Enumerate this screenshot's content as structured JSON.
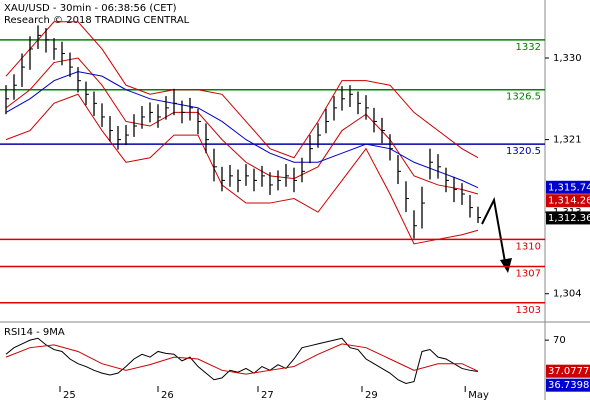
{
  "chart_data": {
    "type": "ohlc",
    "title": "XAU/USD - 30min - 06:38:56 (CET)",
    "subtitle": "Research © 2018 TRADING CENTRAL",
    "xlim": [
      -0.75,
      67.375
    ],
    "xticks": [
      {
        "value": 6.75,
        "label": "25"
      },
      {
        "value": 19,
        "label": "26"
      },
      {
        "value": 31.5,
        "label": "27"
      },
      {
        "value": 44.5,
        "label": "29"
      },
      {
        "value": 57.4,
        "label": "May"
      }
    ],
    "ylim": [
      1301.1,
      1336.4
    ],
    "yticks": [
      {
        "value": 1304,
        "label": "1,304"
      },
      {
        "value": 1313,
        "label": "1,313"
      },
      {
        "value": 1321,
        "label": "1,321"
      },
      {
        "value": 1330,
        "label": "1,330"
      }
    ],
    "color": "#000000",
    "high": [
      1327,
      1328.2,
      1330.5,
      1332.4,
      1333.6,
      1333.3,
      1332.2,
      1331.8,
      1330.6,
      1329,
      1327.4,
      1326.3,
      1325,
      1323.6,
      1322.5,
      1322.6,
      1323.8,
      1324.7,
      1325.1,
      1324.9,
      1325.8,
      1326.6,
      1325.3,
      1325.6,
      1324.4,
      1322.8,
      1320,
      1318,
      1318.2,
      1317.7,
      1318.3,
      1317.8,
      1318.1,
      1317.4,
      1317.6,
      1318.3,
      1317.9,
      1319,
      1321.5,
      1322.8,
      1324.4,
      1325.8,
      1326.9,
      1327,
      1326.3,
      1325.9,
      1324.5,
      1323.4,
      1321.6,
      1319.3,
      1316.4,
      1313.2,
      1315.8,
      1320,
      1319.4,
      1317.9,
      1316.9,
      1316.2,
      1314.9,
      1313.6
    ],
    "low": [
      1323.8,
      1325.4,
      1326.8,
      1328.7,
      1331,
      1330.6,
      1329.8,
      1329.2,
      1327.9,
      1326.2,
      1324.8,
      1323.6,
      1322.4,
      1320.8,
      1319.9,
      1320.4,
      1321.3,
      1322.2,
      1322.9,
      1322.3,
      1323.2,
      1323.7,
      1322.8,
      1323.1,
      1321.6,
      1319.5,
      1316.4,
      1315.3,
      1315.8,
      1315.2,
      1315.9,
      1315.3,
      1315.8,
      1314.9,
      1315.4,
      1315.8,
      1315.2,
      1316.3,
      1318.4,
      1320.1,
      1321.7,
      1323.1,
      1324.2,
      1324.6,
      1323.8,
      1323.2,
      1321.8,
      1320.6,
      1318.7,
      1316.1,
      1313,
      1310.1,
      1311.2,
      1316.6,
      1316.7,
      1315.2,
      1314.1,
      1313.8,
      1312.4,
      1311.8
    ],
    "close": [
      1325.5,
      1327,
      1329,
      1331,
      1332.5,
      1332,
      1331,
      1330.5,
      1329,
      1327.5,
      1326,
      1325,
      1323.5,
      1322,
      1321,
      1321.5,
      1322.5,
      1323.5,
      1324,
      1323.5,
      1324.5,
      1325,
      1324,
      1324.5,
      1323,
      1321,
      1318,
      1316.5,
      1317,
      1316.5,
      1317,
      1316.5,
      1317,
      1316,
      1316.5,
      1317,
      1316.5,
      1317.5,
      1320,
      1321.5,
      1323,
      1324.5,
      1325.5,
      1326,
      1325,
      1324.5,
      1323,
      1322,
      1320,
      1317.5,
      1314.5,
      1311.5,
      1314,
      1318.5,
      1318,
      1316.5,
      1315.5,
      1315,
      1313.5,
      1312.4
    ],
    "overlay_x": [
      0,
      3,
      6,
      9,
      12,
      15,
      18,
      21,
      24,
      27,
      30,
      33,
      36,
      39,
      42,
      45,
      48,
      51,
      54,
      57,
      59
    ],
    "overlays": [
      {
        "color": "#cc0000",
        "values": [
          1328,
          1331,
          1334,
          1334,
          1331,
          1327,
          1326,
          1326.5,
          1326.5,
          1326,
          1323,
          1320,
          1319,
          1323,
          1327.5,
          1327.5,
          1327,
          1324,
          1322,
          1320,
          1319
        ]
      },
      {
        "color": "#cc0000",
        "values": [
          1324.5,
          1326.5,
          1329.5,
          1330,
          1327,
          1323,
          1322.5,
          1324,
          1324,
          1321,
          1318.5,
          1317,
          1316.7,
          1318,
          1322,
          1323.8,
          1321,
          1317,
          1316,
          1315.5,
          1315
        ]
      },
      {
        "color": "#cc0000",
        "values": [
          1321,
          1322,
          1325,
          1326,
          1322,
          1318.5,
          1319,
          1321.5,
          1321.5,
          1316,
          1314,
          1314,
          1314.5,
          1313,
          1316.5,
          1320,
          1315,
          1309.5,
          1310,
          1310.5,
          1311
        ]
      },
      {
        "color": "#0000cc",
        "values": [
          1324,
          1325.5,
          1327.5,
          1328.5,
          1328,
          1326.5,
          1325.5,
          1325,
          1324.5,
          1323,
          1321,
          1319.5,
          1318.5,
          1318.5,
          1319.5,
          1320.5,
          1320,
          1318.5,
          1317.5,
          1316.5,
          1315.7
        ]
      }
    ],
    "levels": [
      {
        "value": 1332,
        "color": "#008000"
      },
      {
        "value": 1326.5,
        "color": "#008000"
      },
      {
        "value": 1320.5,
        "color": "#0000aa"
      },
      {
        "value": 1310,
        "color": "#dd0000"
      },
      {
        "value": 1307,
        "color": "#dd0000"
      },
      {
        "value": 1303,
        "color": "#dd0000"
      }
    ],
    "price_tags": [
      {
        "value": 1315.74,
        "label": "1,315.74",
        "color": "#0000cc"
      },
      {
        "value": 1314.26,
        "label": "1,314.26",
        "color": "#cc0000"
      },
      {
        "value": 1312.36,
        "label": "1,312.36",
        "color": "#000000"
      }
    ],
    "rsi": {
      "title": "RSI14 - 9MA",
      "ylim": [
        15,
        85
      ],
      "yticks": [
        70
      ],
      "color": "#000000",
      "ma_color": "#cc0000",
      "values": [
        55,
        62,
        66,
        70,
        72,
        65,
        60,
        58,
        50,
        45,
        42,
        38,
        35,
        33,
        35,
        42,
        50,
        55,
        52,
        58,
        56,
        55,
        48,
        52,
        42,
        35,
        28,
        30,
        38,
        36,
        40,
        35,
        42,
        38,
        44,
        40,
        50,
        62,
        64,
        66,
        68,
        70,
        72,
        62,
        60,
        50,
        45,
        40,
        35,
        28,
        24,
        26,
        58,
        60,
        52,
        50,
        45,
        40,
        38,
        36.7
      ],
      "ma": [
        52,
        62,
        65,
        58,
        45,
        38,
        44,
        52,
        50,
        38,
        34,
        38,
        42,
        55,
        66,
        62,
        50,
        38,
        45,
        45,
        37.1
      ],
      "tags": [
        {
          "value": 37.0777,
          "color": "#cc0000"
        },
        {
          "value": 36.7398,
          "color": "#0000cc"
        }
      ]
    }
  }
}
